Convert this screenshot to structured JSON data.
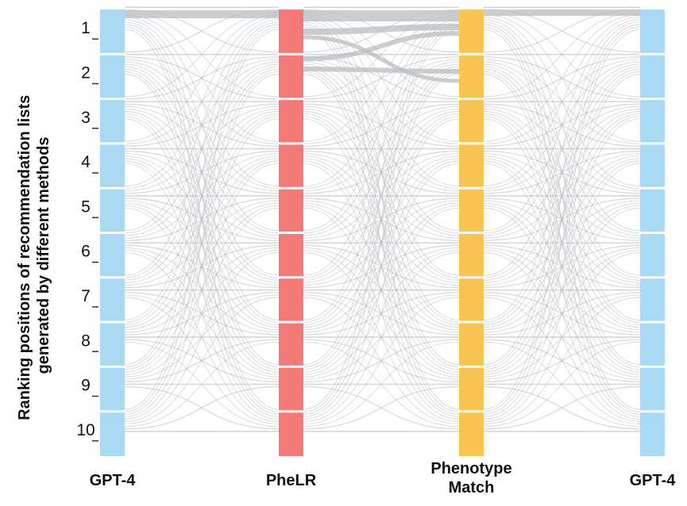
{
  "chart_data": {
    "type": "sankey",
    "ylabel": "Ranking positions of recommendation lists generated by different methods",
    "positions": [
      "1",
      "2",
      "3",
      "4",
      "5",
      "6",
      "7",
      "8",
      "9",
      "10"
    ],
    "columns": [
      {
        "name": "GPT-4",
        "color": "#a9d9f3"
      },
      {
        "name": "PheLR",
        "color": "#f47a78"
      },
      {
        "name": "Phenotype Match",
        "color": "#f9c552"
      },
      {
        "name": "GPT-4",
        "color": "#a9d9f3"
      }
    ],
    "flow_color": "#b9bdc1",
    "links": "all-to-all between ranking positions of adjacent columns; heaviest flows run along the top (position 1 to position 1)"
  }
}
